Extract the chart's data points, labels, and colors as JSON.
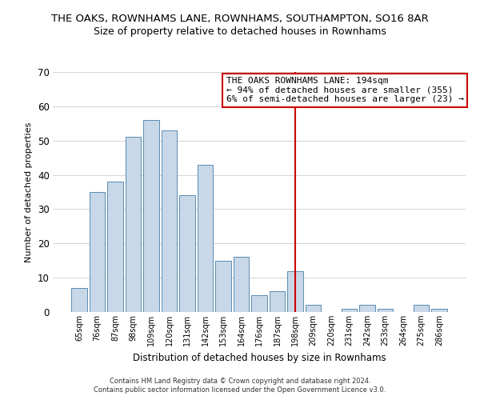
{
  "title1": "THE OAKS, ROWNHAMS LANE, ROWNHAMS, SOUTHAMPTON, SO16 8AR",
  "title2": "Size of property relative to detached houses in Rownhams",
  "xlabel": "Distribution of detached houses by size in Rownhams",
  "ylabel": "Number of detached properties",
  "bar_labels": [
    "65sqm",
    "76sqm",
    "87sqm",
    "98sqm",
    "109sqm",
    "120sqm",
    "131sqm",
    "142sqm",
    "153sqm",
    "164sqm",
    "176sqm",
    "187sqm",
    "198sqm",
    "209sqm",
    "220sqm",
    "231sqm",
    "242sqm",
    "253sqm",
    "264sqm",
    "275sqm",
    "286sqm"
  ],
  "bar_heights": [
    7,
    35,
    38,
    51,
    56,
    53,
    34,
    43,
    15,
    16,
    5,
    6,
    12,
    2,
    0,
    1,
    2,
    1,
    0,
    2,
    1
  ],
  "bar_color": "#c8d8e8",
  "bar_edge_color": "#5a8ab0",
  "grid_color": "#cccccc",
  "vline_x_idx": 12,
  "vline_color": "#cc0000",
  "annotation_title": "THE OAKS ROWNHAMS LANE: 194sqm",
  "annotation_line1": "← 94% of detached houses are smaller (355)",
  "annotation_line2": "6% of semi-detached houses are larger (23) →",
  "annotation_box_color": "#ffffff",
  "annotation_box_edge": "#cc0000",
  "footer1": "Contains HM Land Registry data © Crown copyright and database right 2024.",
  "footer2": "Contains public sector information licensed under the Open Government Licence v3.0.",
  "ylim": [
    0,
    70
  ],
  "yticks": [
    0,
    10,
    20,
    30,
    40,
    50,
    60,
    70
  ],
  "title1_fontsize": 9.5,
  "title2_fontsize": 9,
  "ylabel_fontsize": 8,
  "xlabel_fontsize": 8.5,
  "tick_fontsize": 7,
  "annotation_fontsize": 8,
  "footer_fontsize": 6
}
